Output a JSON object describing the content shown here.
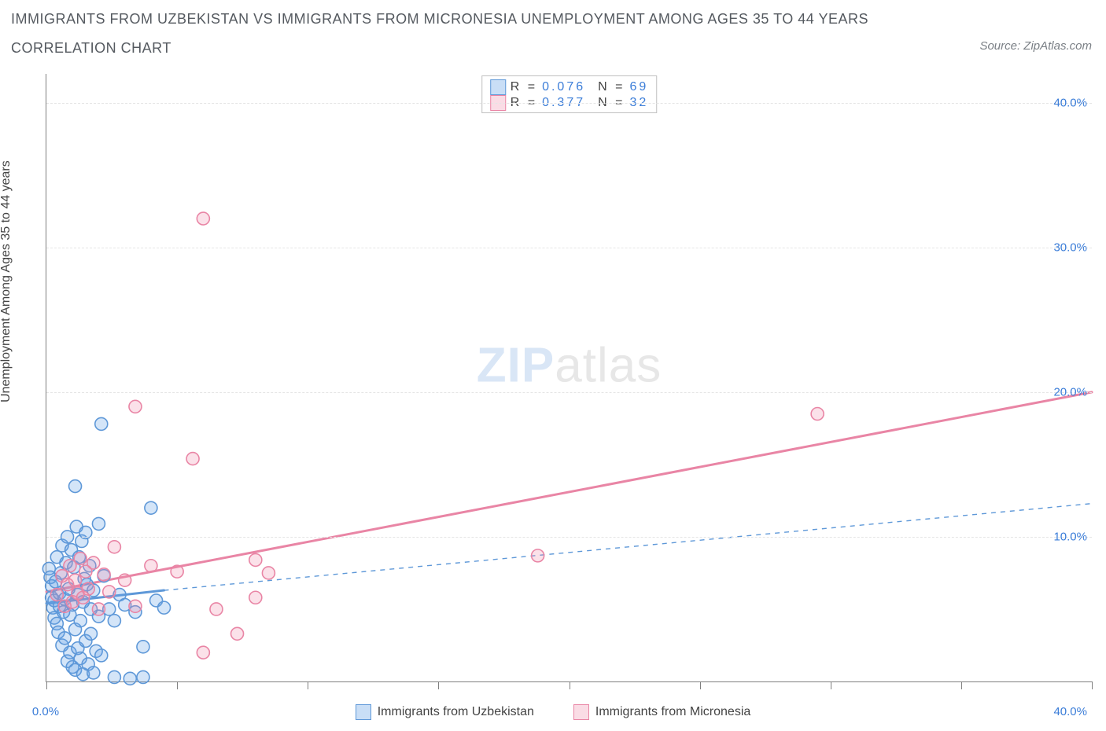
{
  "title_line1": "IMMIGRANTS FROM UZBEKISTAN VS IMMIGRANTS FROM MICRONESIA UNEMPLOYMENT AMONG AGES 35 TO 44 YEARS",
  "title_line2": "CORRELATION CHART",
  "source_label": "Source: ZipAtlas.com",
  "ylabel": "Unemployment Among Ages 35 to 44 years",
  "watermark_a": "ZIP",
  "watermark_b": "atlas",
  "chart": {
    "type": "scatter",
    "xlim": [
      0,
      40
    ],
    "ylim": [
      0,
      42
    ],
    "x_tick_positions": [
      0,
      5,
      10,
      15,
      20,
      25,
      30,
      35,
      40
    ],
    "x_tick_labels": {
      "0": "0.0%",
      "40": "40.0%"
    },
    "y_ticks": [
      10,
      20,
      30,
      40
    ],
    "y_tick_labels": [
      "10.0%",
      "20.0%",
      "30.0%",
      "40.0%"
    ],
    "grid_color": "#e5e5e5",
    "axis_color": "#808080",
    "background_color": "#ffffff",
    "marker_radius": 8,
    "marker_stroke_width": 1.6,
    "series": [
      {
        "name": "Immigrants from Uzbekistan",
        "color_fill": "rgba(100,160,230,0.28)",
        "color_stroke": "#5e98d8",
        "R": "0.076",
        "N": "69",
        "trend": {
          "solid": {
            "x1": 0,
            "y1": 5.4,
            "x2": 4.5,
            "y2": 6.3,
            "width": 3
          },
          "dashed": {
            "x1": 4.5,
            "y1": 6.3,
            "x2": 40,
            "y2": 12.3,
            "width": 1.4,
            "dash": "6,6"
          }
        },
        "points": [
          [
            0.1,
            7.8
          ],
          [
            0.15,
            7.2
          ],
          [
            0.2,
            5.8
          ],
          [
            0.2,
            6.6
          ],
          [
            0.25,
            5.1
          ],
          [
            0.3,
            4.4
          ],
          [
            0.3,
            5.6
          ],
          [
            0.35,
            6.9
          ],
          [
            0.4,
            4.0
          ],
          [
            0.4,
            8.6
          ],
          [
            0.45,
            3.4
          ],
          [
            0.5,
            5.2
          ],
          [
            0.5,
            6.1
          ],
          [
            0.55,
            7.5
          ],
          [
            0.6,
            2.5
          ],
          [
            0.6,
            9.4
          ],
          [
            0.65,
            4.8
          ],
          [
            0.7,
            3.0
          ],
          [
            0.7,
            5.7
          ],
          [
            0.75,
            8.2
          ],
          [
            0.8,
            1.4
          ],
          [
            0.8,
            10.0
          ],
          [
            0.85,
            6.4
          ],
          [
            0.9,
            2.0
          ],
          [
            0.9,
            4.6
          ],
          [
            0.95,
            9.1
          ],
          [
            1.0,
            1.0
          ],
          [
            1.0,
            5.3
          ],
          [
            1.05,
            7.9
          ],
          [
            1.1,
            0.8
          ],
          [
            1.1,
            3.6
          ],
          [
            1.15,
            10.7
          ],
          [
            1.2,
            2.3
          ],
          [
            1.2,
            6.0
          ],
          [
            1.25,
            8.6
          ],
          [
            1.3,
            1.6
          ],
          [
            1.3,
            4.2
          ],
          [
            1.35,
            9.7
          ],
          [
            1.4,
            0.5
          ],
          [
            1.4,
            5.5
          ],
          [
            1.45,
            7.1
          ],
          [
            1.5,
            2.8
          ],
          [
            1.5,
            10.3
          ],
          [
            1.55,
            6.7
          ],
          [
            1.6,
            1.2
          ],
          [
            1.65,
            8.0
          ],
          [
            1.7,
            3.3
          ],
          [
            1.7,
            5.0
          ],
          [
            1.8,
            0.6
          ],
          [
            1.8,
            6.3
          ],
          [
            1.9,
            2.1
          ],
          [
            2.0,
            4.5
          ],
          [
            2.0,
            10.9
          ],
          [
            2.1,
            1.8
          ],
          [
            2.2,
            7.3
          ],
          [
            2.4,
            5.0
          ],
          [
            2.6,
            0.3
          ],
          [
            2.6,
            4.2
          ],
          [
            2.8,
            6.0
          ],
          [
            3.0,
            5.3
          ],
          [
            3.2,
            0.2
          ],
          [
            3.4,
            4.8
          ],
          [
            3.7,
            2.4
          ],
          [
            3.7,
            0.3
          ],
          [
            4.0,
            12.0
          ],
          [
            4.2,
            5.6
          ],
          [
            4.5,
            5.1
          ],
          [
            2.1,
            17.8
          ],
          [
            1.1,
            13.5
          ]
        ]
      },
      {
        "name": "Immigrants from Micronesia",
        "color_fill": "rgba(240,140,170,0.26)",
        "color_stroke": "#e985a5",
        "R": "0.377",
        "N": "32",
        "trend": {
          "solid": {
            "x1": 0,
            "y1": 6.2,
            "x2": 40,
            "y2": 20.0,
            "width": 3
          }
        },
        "points": [
          [
            0.4,
            6.0
          ],
          [
            0.6,
            7.3
          ],
          [
            0.7,
            5.2
          ],
          [
            0.8,
            6.7
          ],
          [
            0.9,
            8.0
          ],
          [
            1.0,
            5.5
          ],
          [
            1.1,
            7.0
          ],
          [
            1.2,
            6.1
          ],
          [
            1.3,
            8.5
          ],
          [
            1.4,
            5.8
          ],
          [
            1.5,
            7.6
          ],
          [
            1.6,
            6.4
          ],
          [
            1.8,
            8.2
          ],
          [
            2.0,
            5.0
          ],
          [
            2.2,
            7.4
          ],
          [
            2.4,
            6.2
          ],
          [
            2.6,
            9.3
          ],
          [
            3.0,
            7.0
          ],
          [
            3.4,
            5.2
          ],
          [
            3.4,
            19.0
          ],
          [
            4.0,
            8.0
          ],
          [
            5.0,
            7.6
          ],
          [
            5.6,
            15.4
          ],
          [
            6.0,
            2.0
          ],
          [
            6.5,
            5.0
          ],
          [
            7.3,
            3.3
          ],
          [
            8.0,
            8.4
          ],
          [
            8.0,
            5.8
          ],
          [
            8.5,
            7.5
          ],
          [
            18.8,
            8.7
          ],
          [
            29.5,
            18.5
          ],
          [
            6.0,
            32.0
          ]
        ]
      }
    ]
  },
  "legend_top": {
    "r_label": "R =",
    "n_label": "N ="
  },
  "legend_bottom": [
    {
      "swatch": "blue",
      "label": "Immigrants from Uzbekistan"
    },
    {
      "swatch": "pink",
      "label": "Immigrants from Micronesia"
    }
  ]
}
